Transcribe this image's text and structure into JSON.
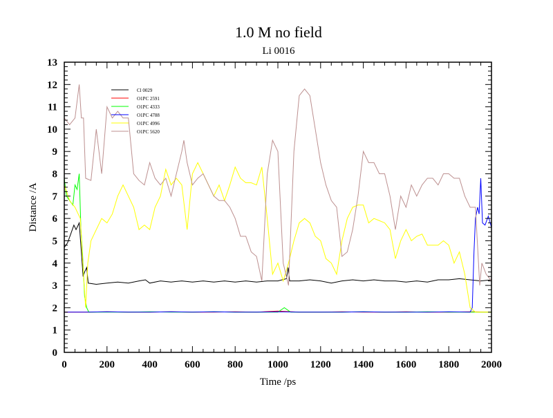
{
  "chart_data": {
    "type": "line",
    "title": "1.0 M no field",
    "subtitle": "Li 0016",
    "xlabel": "Time /ps",
    "ylabel": "Distance /A",
    "xlim": [
      0,
      2000
    ],
    "ylim": [
      0,
      13
    ],
    "xticks": [
      0,
      200,
      400,
      600,
      800,
      1000,
      1200,
      1400,
      1600,
      1800,
      2000
    ],
    "yticks": [
      0,
      1,
      2,
      3,
      4,
      5,
      6,
      7,
      8,
      9,
      10,
      11,
      12,
      13
    ],
    "grid": false,
    "legend_position": "top-left",
    "series": [
      {
        "name": "Cl 0029",
        "color": "#000000",
        "points": [
          [
            0,
            4.7
          ],
          [
            15,
            4.9
          ],
          [
            30,
            5.3
          ],
          [
            45,
            5.7
          ],
          [
            55,
            5.5
          ],
          [
            70,
            5.8
          ],
          [
            80,
            4.5
          ],
          [
            88,
            3.4
          ],
          [
            95,
            3.6
          ],
          [
            105,
            3.8
          ],
          [
            112,
            3.1
          ],
          [
            150,
            3.05
          ],
          [
            200,
            3.1
          ],
          [
            250,
            3.15
          ],
          [
            300,
            3.1
          ],
          [
            350,
            3.2
          ],
          [
            380,
            3.25
          ],
          [
            400,
            3.1
          ],
          [
            450,
            3.2
          ],
          [
            500,
            3.15
          ],
          [
            550,
            3.2
          ],
          [
            600,
            3.15
          ],
          [
            650,
            3.2
          ],
          [
            700,
            3.15
          ],
          [
            750,
            3.2
          ],
          [
            800,
            3.15
          ],
          [
            850,
            3.2
          ],
          [
            900,
            3.15
          ],
          [
            950,
            3.2
          ],
          [
            1000,
            3.2
          ],
          [
            1040,
            3.3
          ],
          [
            1048,
            3.8
          ],
          [
            1055,
            3.2
          ],
          [
            1100,
            3.2
          ],
          [
            1150,
            3.25
          ],
          [
            1200,
            3.2
          ],
          [
            1250,
            3.1
          ],
          [
            1300,
            3.2
          ],
          [
            1350,
            3.25
          ],
          [
            1400,
            3.2
          ],
          [
            1450,
            3.25
          ],
          [
            1500,
            3.2
          ],
          [
            1550,
            3.2
          ],
          [
            1600,
            3.15
          ],
          [
            1650,
            3.2
          ],
          [
            1700,
            3.15
          ],
          [
            1750,
            3.25
          ],
          [
            1800,
            3.25
          ],
          [
            1850,
            3.3
          ],
          [
            1900,
            3.25
          ],
          [
            1950,
            3.2
          ],
          [
            2000,
            3.25
          ]
        ]
      },
      {
        "name": "O1PC 2591",
        "color": "#ff0000",
        "points": [
          [
            0,
            1.8
          ],
          [
            100,
            1.8
          ],
          [
            200,
            1.82
          ],
          [
            300,
            1.8
          ],
          [
            400,
            1.8
          ],
          [
            500,
            1.82
          ],
          [
            600,
            1.8
          ],
          [
            700,
            1.8
          ],
          [
            800,
            1.82
          ],
          [
            900,
            1.8
          ],
          [
            1000,
            1.85
          ],
          [
            1100,
            1.8
          ],
          [
            1200,
            1.8
          ],
          [
            1300,
            1.82
          ],
          [
            1400,
            1.8
          ],
          [
            1500,
            1.8
          ],
          [
            1600,
            1.82
          ],
          [
            1700,
            1.8
          ],
          [
            1800,
            1.8
          ],
          [
            1900,
            1.82
          ],
          [
            2000,
            1.8
          ]
        ]
      },
      {
        "name": "O1PC 4333",
        "color": "#00ff00",
        "points": [
          [
            0,
            7.8
          ],
          [
            10,
            7.0
          ],
          [
            25,
            6.8
          ],
          [
            40,
            6.6
          ],
          [
            50,
            7.5
          ],
          [
            60,
            7.3
          ],
          [
            70,
            8.0
          ],
          [
            78,
            5.5
          ],
          [
            85,
            4.5
          ],
          [
            95,
            2.5
          ],
          [
            105,
            2.0
          ],
          [
            115,
            1.8
          ],
          [
            200,
            1.8
          ],
          [
            300,
            1.8
          ],
          [
            400,
            1.82
          ],
          [
            500,
            1.8
          ],
          [
            600,
            1.8
          ],
          [
            700,
            1.82
          ],
          [
            800,
            1.8
          ],
          [
            900,
            1.8
          ],
          [
            1000,
            1.8
          ],
          [
            1030,
            2.0
          ],
          [
            1060,
            1.8
          ],
          [
            1200,
            1.8
          ],
          [
            1300,
            1.8
          ],
          [
            1400,
            1.82
          ],
          [
            1500,
            1.8
          ],
          [
            1600,
            1.8
          ],
          [
            1700,
            1.82
          ],
          [
            1800,
            1.8
          ],
          [
            1900,
            1.8
          ],
          [
            2000,
            1.8
          ]
        ]
      },
      {
        "name": "O1PC 4788",
        "color": "#0000ff",
        "points": [
          [
            0,
            1.8
          ],
          [
            100,
            1.8
          ],
          [
            200,
            1.82
          ],
          [
            300,
            1.8
          ],
          [
            400,
            1.8
          ],
          [
            500,
            1.82
          ],
          [
            600,
            1.8
          ],
          [
            700,
            1.82
          ],
          [
            800,
            1.8
          ],
          [
            900,
            1.8
          ],
          [
            1000,
            1.82
          ],
          [
            1100,
            1.8
          ],
          [
            1200,
            1.8
          ],
          [
            1300,
            1.8
          ],
          [
            1400,
            1.82
          ],
          [
            1500,
            1.8
          ],
          [
            1600,
            1.8
          ],
          [
            1700,
            1.8
          ],
          [
            1800,
            1.82
          ],
          [
            1900,
            1.8
          ],
          [
            1910,
            2.0
          ],
          [
            1918,
            4.5
          ],
          [
            1925,
            6.0
          ],
          [
            1935,
            6.5
          ],
          [
            1942,
            6.2
          ],
          [
            1950,
            7.8
          ],
          [
            1958,
            5.8
          ],
          [
            1970,
            5.7
          ],
          [
            1985,
            6.1
          ],
          [
            2000,
            5.6
          ]
        ]
      },
      {
        "name": "O1PC 4996",
        "color": "#ffff00",
        "points": [
          [
            0,
            7.5
          ],
          [
            25,
            6.8
          ],
          [
            50,
            6.5
          ],
          [
            75,
            6.0
          ],
          [
            90,
            3.5
          ],
          [
            100,
            2.0
          ],
          [
            110,
            4.0
          ],
          [
            125,
            5.0
          ],
          [
            150,
            5.5
          ],
          [
            175,
            6.0
          ],
          [
            200,
            5.8
          ],
          [
            225,
            6.2
          ],
          [
            250,
            7.0
          ],
          [
            275,
            7.5
          ],
          [
            300,
            7.0
          ],
          [
            325,
            6.5
          ],
          [
            350,
            5.5
          ],
          [
            375,
            5.7
          ],
          [
            400,
            5.5
          ],
          [
            425,
            6.5
          ],
          [
            450,
            7.0
          ],
          [
            475,
            8.2
          ],
          [
            500,
            7.5
          ],
          [
            525,
            7.8
          ],
          [
            550,
            7.5
          ],
          [
            575,
            5.5
          ],
          [
            600,
            8.0
          ],
          [
            625,
            8.5
          ],
          [
            650,
            8.0
          ],
          [
            675,
            7.5
          ],
          [
            700,
            7.0
          ],
          [
            725,
            7.5
          ],
          [
            750,
            6.8
          ],
          [
            775,
            7.5
          ],
          [
            800,
            8.3
          ],
          [
            825,
            7.8
          ],
          [
            850,
            7.6
          ],
          [
            875,
            7.6
          ],
          [
            900,
            7.5
          ],
          [
            925,
            8.3
          ],
          [
            950,
            6.0
          ],
          [
            975,
            3.5
          ],
          [
            1000,
            4.0
          ],
          [
            1025,
            3.2
          ],
          [
            1050,
            4.0
          ],
          [
            1075,
            5.0
          ],
          [
            1100,
            5.8
          ],
          [
            1125,
            6.0
          ],
          [
            1150,
            5.8
          ],
          [
            1175,
            5.2
          ],
          [
            1200,
            5.0
          ],
          [
            1225,
            4.2
          ],
          [
            1250,
            4.0
          ],
          [
            1275,
            3.5
          ],
          [
            1300,
            5.0
          ],
          [
            1325,
            6.0
          ],
          [
            1350,
            6.5
          ],
          [
            1375,
            6.6
          ],
          [
            1400,
            6.6
          ],
          [
            1425,
            5.8
          ],
          [
            1450,
            6.0
          ],
          [
            1475,
            5.9
          ],
          [
            1500,
            5.8
          ],
          [
            1525,
            5.5
          ],
          [
            1550,
            4.2
          ],
          [
            1575,
            5.0
          ],
          [
            1600,
            5.5
          ],
          [
            1625,
            5.0
          ],
          [
            1650,
            5.2
          ],
          [
            1675,
            5.3
          ],
          [
            1700,
            4.8
          ],
          [
            1725,
            4.8
          ],
          [
            1750,
            4.8
          ],
          [
            1775,
            5.0
          ],
          [
            1800,
            4.8
          ],
          [
            1825,
            4.0
          ],
          [
            1850,
            4.5
          ],
          [
            1875,
            3.5
          ],
          [
            1900,
            2.0
          ],
          [
            1925,
            1.8
          ],
          [
            2000,
            1.8
          ]
        ]
      },
      {
        "name": "O1PC 5620",
        "color": "#bc8f8f",
        "points": [
          [
            0,
            10.5
          ],
          [
            25,
            10.2
          ],
          [
            50,
            10.5
          ],
          [
            70,
            12.0
          ],
          [
            80,
            10.5
          ],
          [
            90,
            10.5
          ],
          [
            100,
            7.8
          ],
          [
            125,
            7.7
          ],
          [
            150,
            10.0
          ],
          [
            175,
            8.0
          ],
          [
            200,
            11.0
          ],
          [
            225,
            10.5
          ],
          [
            250,
            10.8
          ],
          [
            275,
            10.5
          ],
          [
            300,
            10.5
          ],
          [
            325,
            8.0
          ],
          [
            350,
            7.7
          ],
          [
            375,
            7.5
          ],
          [
            400,
            8.5
          ],
          [
            425,
            7.8
          ],
          [
            450,
            7.5
          ],
          [
            475,
            7.8
          ],
          [
            500,
            7.0
          ],
          [
            525,
            8.0
          ],
          [
            550,
            9.0
          ],
          [
            560,
            9.5
          ],
          [
            575,
            8.5
          ],
          [
            600,
            7.5
          ],
          [
            625,
            7.8
          ],
          [
            650,
            8.0
          ],
          [
            675,
            7.5
          ],
          [
            700,
            7.0
          ],
          [
            725,
            6.8
          ],
          [
            750,
            6.8
          ],
          [
            775,
            6.5
          ],
          [
            800,
            6.0
          ],
          [
            825,
            5.2
          ],
          [
            850,
            5.2
          ],
          [
            875,
            4.5
          ],
          [
            900,
            4.3
          ],
          [
            925,
            3.2
          ],
          [
            950,
            8.0
          ],
          [
            975,
            9.5
          ],
          [
            1000,
            9.0
          ],
          [
            1025,
            4.0
          ],
          [
            1050,
            3.0
          ],
          [
            1075,
            9.0
          ],
          [
            1100,
            11.5
          ],
          [
            1125,
            11.8
          ],
          [
            1150,
            11.5
          ],
          [
            1175,
            10.0
          ],
          [
            1200,
            8.5
          ],
          [
            1225,
            7.5
          ],
          [
            1250,
            6.8
          ],
          [
            1275,
            6.5
          ],
          [
            1300,
            4.3
          ],
          [
            1325,
            4.5
          ],
          [
            1350,
            5.5
          ],
          [
            1375,
            7.0
          ],
          [
            1400,
            9.0
          ],
          [
            1425,
            8.5
          ],
          [
            1450,
            8.5
          ],
          [
            1475,
            8.0
          ],
          [
            1500,
            8.0
          ],
          [
            1525,
            7.0
          ],
          [
            1550,
            5.5
          ],
          [
            1575,
            7.0
          ],
          [
            1600,
            6.5
          ],
          [
            1625,
            7.5
          ],
          [
            1650,
            7.0
          ],
          [
            1675,
            7.5
          ],
          [
            1700,
            7.8
          ],
          [
            1725,
            7.8
          ],
          [
            1750,
            7.5
          ],
          [
            1775,
            8.0
          ],
          [
            1800,
            8.0
          ],
          [
            1825,
            7.8
          ],
          [
            1850,
            7.8
          ],
          [
            1875,
            7.0
          ],
          [
            1900,
            6.5
          ],
          [
            1925,
            6.5
          ],
          [
            1945,
            3.0
          ],
          [
            1955,
            4.0
          ],
          [
            1975,
            3.5
          ],
          [
            2000,
            3.2
          ]
        ]
      }
    ]
  }
}
